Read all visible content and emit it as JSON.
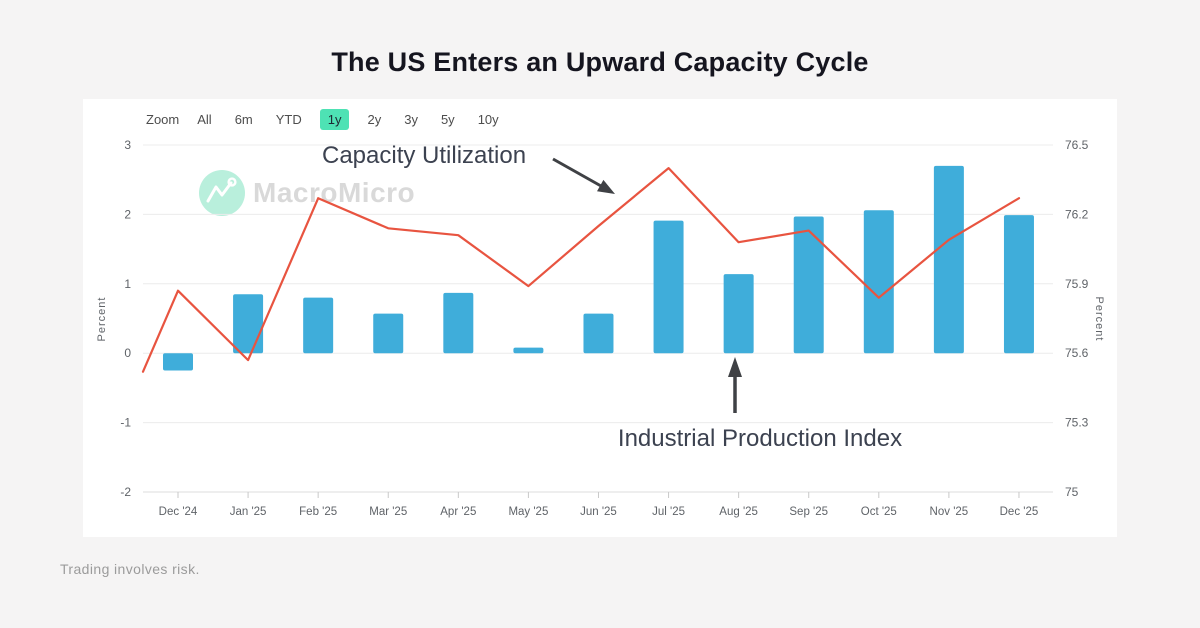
{
  "page": {
    "title": "The US Enters an Upward Capacity Cycle",
    "footer": "Trading involves risk.",
    "watermark": "MacroMicro"
  },
  "toolbar": {
    "zoom_label": "Zoom",
    "ranges": [
      "All",
      "6m",
      "YTD",
      "1y",
      "2y",
      "3y",
      "5y",
      "10y"
    ],
    "active_range": "1y"
  },
  "annotations": {
    "line_label": "Capacity Utilization",
    "bar_label": "Industrial Production Index"
  },
  "colors": {
    "background": "#f5f4f4",
    "card": "#ffffff",
    "bar_blue": "#3fadda",
    "line_red": "#e85440",
    "accent_button_mint": "#4ee2b4",
    "arrow_gray": "#3f4145",
    "watermark_mint": "#b9efdc",
    "grid": "#ececec",
    "axis_text": "#5f6368"
  },
  "chart_data": {
    "type": "combo",
    "categories": [
      "Dec '24",
      "Jan '25",
      "Feb '25",
      "Mar '25",
      "Apr '25",
      "May '25",
      "Jun '25",
      "Jul '25",
      "Aug '25",
      "Sep '25",
      "Oct '25",
      "Nov '25",
      "Dec '25"
    ],
    "series": [
      {
        "name": "Industrial Production Index",
        "type": "bar",
        "axis": "left",
        "color": "#3fadda",
        "values": [
          -0.25,
          0.85,
          0.8,
          0.57,
          0.87,
          0.08,
          0.57,
          1.91,
          1.14,
          1.97,
          2.06,
          2.7,
          1.99
        ]
      },
      {
        "name": "Capacity Utilization",
        "type": "line",
        "axis": "right",
        "color": "#e85440",
        "edge_start_value": 75.52,
        "values": [
          75.87,
          75.57,
          76.27,
          76.14,
          76.11,
          75.89,
          76.15,
          76.4,
          76.08,
          76.13,
          75.84,
          76.09,
          76.27
        ]
      }
    ],
    "left_axis": {
      "label": "Percent",
      "ticks": [
        3,
        2,
        1,
        0,
        -1,
        -2
      ],
      "min": -2,
      "max": 3
    },
    "right_axis": {
      "label": "Percent",
      "ticks": [
        76.5,
        76.2,
        75.9,
        75.6,
        75.3,
        75
      ],
      "min": 75,
      "max": 76.5
    },
    "grid": true,
    "legend": "none (labels via annotation arrows)"
  }
}
